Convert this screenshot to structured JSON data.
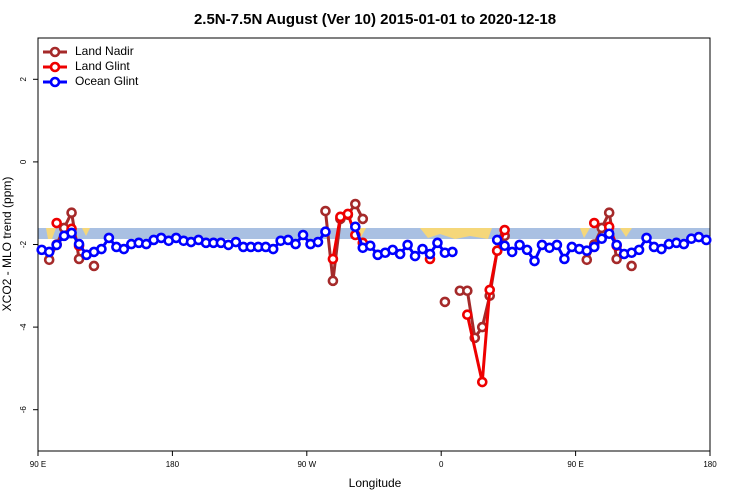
{
  "chart_data": {
    "type": "line",
    "title": "2.5N-7.5N August (Ver 10)   2015-01-01 to 2020-12-18",
    "xlabel": "Longitude",
    "ylabel": "XCO2 - MLO trend (ppm)",
    "xlim": [
      90,
      540
    ],
    "ylim": [
      -7,
      3
    ],
    "xticks": [
      {
        "value": 90,
        "label": "90 E"
      },
      180,
      {
        "value": 270,
        "label": "90 W"
      },
      {
        "value": 360,
        "label": "0"
      },
      {
        "value": 450,
        "label": "90 E"
      },
      {
        "value": 540,
        "label": "180"
      }
    ],
    "yticks": [
      -6,
      -4,
      -2,
      0,
      2
    ],
    "legend": "top-left",
    "series": [
      {
        "name": "Land Nadir",
        "color": "#a52a2a",
        "x": [
          97.5,
          102.5,
          107.5,
          112.5,
          117.5,
          122.5,
          127.5,
          132.5,
          282.5,
          287.5,
          292.5,
          297.5,
          302.5,
          307.5,
          312.5,
          362.5,
          367.5,
          372.5,
          377.5,
          382.5,
          387.5,
          392.5,
          397.5,
          402.5,
          407.5,
          457.5,
          462.5,
          467.5,
          472.5,
          477.5,
          482.5,
          487.5
        ],
        "values": [
          -2.37,
          -2.0,
          -1.6,
          -1.23,
          -2.35,
          null,
          -2.52,
          null,
          -1.19,
          -2.88,
          -1.38,
          -1.28,
          -1.02,
          -1.38,
          null,
          -3.39,
          null,
          -3.12,
          -3.12,
          -4.26,
          -4.0,
          -3.24,
          -2.15,
          -1.79,
          null,
          -2.37,
          -2.0,
          -1.6,
          -1.23,
          -2.35,
          null,
          -2.52
        ]
      },
      {
        "name": "Land Glint",
        "color": "#ee0000",
        "x": [
          102.5,
          107.5,
          112.5,
          117.5,
          122.5,
          287.5,
          292.5,
          297.5,
          302.5,
          307.5,
          312.5,
          352.5,
          357.5,
          377.5,
          387.5,
          392.5,
          397.5,
          402.5,
          407.5,
          462.5,
          467.5,
          472.5,
          477.5
        ],
        "values": [
          -1.48,
          null,
          -1.62,
          -2.03,
          null,
          -2.35,
          -1.33,
          -1.26,
          -1.77,
          -1.96,
          null,
          -2.35,
          null,
          -3.7,
          -5.33,
          -3.1,
          -2.15,
          -1.65,
          null,
          -1.48,
          null,
          -1.57,
          -2.03
        ]
      },
      {
        "name": "Ocean Glint",
        "color": "#0000ff",
        "x": [
          92.5,
          97.5,
          102.5,
          107.5,
          112.5,
          117.5,
          122.5,
          127.5,
          132.5,
          137.5,
          142.5,
          147.5,
          152.5,
          157.5,
          162.5,
          167.5,
          172.5,
          177.5,
          182.5,
          187.5,
          192.5,
          197.5,
          202.5,
          207.5,
          212.5,
          217.5,
          222.5,
          227.5,
          232.5,
          237.5,
          242.5,
          247.5,
          252.5,
          257.5,
          262.5,
          267.5,
          272.5,
          277.5,
          282.5,
          287.5,
          292.5,
          297.5,
          302.5,
          307.5,
          312.5,
          317.5,
          322.5,
          327.5,
          332.5,
          337.5,
          342.5,
          347.5,
          352.5,
          357.5,
          362.5,
          367.5,
          372.5,
          377.5,
          382.5,
          387.5,
          392.5,
          397.5,
          402.5,
          407.5,
          412.5,
          417.5,
          422.5,
          427.5,
          432.5,
          437.5,
          442.5,
          447.5,
          452.5,
          457.5,
          462.5,
          467.5,
          472.5,
          477.5,
          482.5,
          487.5,
          492.5,
          497.5,
          502.5,
          507.5,
          512.5,
          517.5,
          522.5,
          527.5,
          532.5,
          537.5
        ],
        "values": [
          -2.13,
          -2.18,
          -2.01,
          -1.79,
          -1.72,
          -1.99,
          -2.25,
          -2.18,
          -2.11,
          -1.84,
          -2.06,
          -2.11,
          -1.99,
          -1.96,
          -1.99,
          -1.89,
          -1.84,
          -1.91,
          -1.84,
          -1.91,
          -1.94,
          -1.89,
          -1.96,
          -1.96,
          -1.96,
          -2.01,
          -1.94,
          -2.06,
          -2.06,
          -2.06,
          -2.06,
          -2.11,
          -1.91,
          -1.89,
          -1.99,
          -1.77,
          -1.99,
          -1.94,
          -1.69,
          null,
          null,
          null,
          -1.57,
          -2.08,
          -2.03,
          -2.25,
          -2.2,
          -2.13,
          -2.23,
          -2.01,
          -2.28,
          -2.11,
          -2.23,
          -1.96,
          -2.2,
          -2.18,
          null,
          null,
          null,
          null,
          null,
          -1.89,
          -2.03,
          -2.18,
          -2.01,
          -2.13,
          -2.4,
          -2.01,
          -2.08,
          -2.01,
          -2.35,
          -2.06,
          -2.11,
          -2.15,
          -2.06,
          -1.86,
          -1.74,
          -2.01,
          -2.23,
          -2.2,
          -2.13,
          -1.84,
          -2.06,
          -2.11,
          -1.99,
          -1.96,
          -1.99,
          -1.86,
          -1.82,
          -1.89
        ]
      }
    ]
  }
}
